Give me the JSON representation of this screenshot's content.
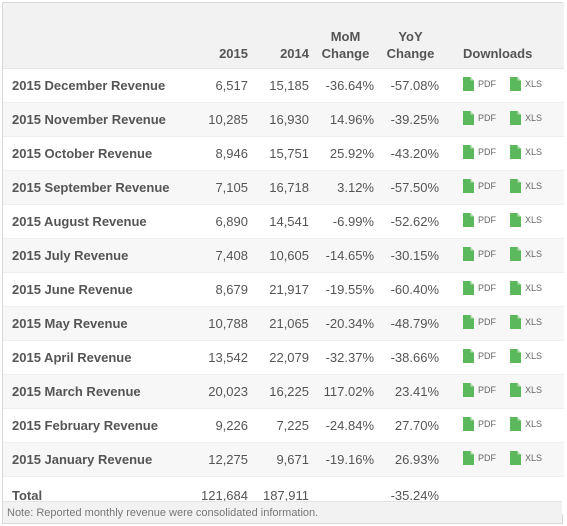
{
  "headers": {
    "col_2015": "2015",
    "col_2014": "2014",
    "mom_line1": "MoM",
    "mom_line2": "Change",
    "yoy_line1": "YoY",
    "yoy_line2": "Change",
    "downloads": "Downloads"
  },
  "download_labels": {
    "pdf": "PDF",
    "xls": "XLS"
  },
  "icon_color": "#5cb85c",
  "icon_name": "file-icon",
  "rows": [
    {
      "label": "2015 December Revenue",
      "v2015": "6,517",
      "v2014": "15,185",
      "mom": "-36.64%",
      "yoy": "-57.08%"
    },
    {
      "label": "2015 November Revenue",
      "v2015": "10,285",
      "v2014": "16,930",
      "mom": "14.96%",
      "yoy": "-39.25%"
    },
    {
      "label": "2015 October Revenue",
      "v2015": "8,946",
      "v2014": "15,751",
      "mom": "25.92%",
      "yoy": "-43.20%"
    },
    {
      "label": "2015 September Revenue",
      "v2015": "7,105",
      "v2014": "16,718",
      "mom": "3.12%",
      "yoy": "-57.50%"
    },
    {
      "label": "2015 August Revenue",
      "v2015": "6,890",
      "v2014": "14,541",
      "mom": "-6.99%",
      "yoy": "-52.62%"
    },
    {
      "label": "2015 July Revenue",
      "v2015": "7,408",
      "v2014": "10,605",
      "mom": "-14.65%",
      "yoy": "-30.15%"
    },
    {
      "label": "2015 June Revenue",
      "v2015": "8,679",
      "v2014": "21,917",
      "mom": "-19.55%",
      "yoy": "-60.40%"
    },
    {
      "label": "2015 May Revenue",
      "v2015": "10,788",
      "v2014": "21,065",
      "mom": "-20.34%",
      "yoy": "-48.79%"
    },
    {
      "label": "2015 April Revenue",
      "v2015": "13,542",
      "v2014": "22,079",
      "mom": "-32.37%",
      "yoy": "-38.66%"
    },
    {
      "label": "2015 March Revenue",
      "v2015": "20,023",
      "v2014": "16,225",
      "mom": "117.02%",
      "yoy": "23.41%"
    },
    {
      "label": "2015 February Revenue",
      "v2015": "9,226",
      "v2014": "7,225",
      "mom": "-24.84%",
      "yoy": "27.70%"
    },
    {
      "label": "2015 January Revenue",
      "v2015": "12,275",
      "v2014": "9,671",
      "mom": "-19.16%",
      "yoy": "26.93%"
    }
  ],
  "total": {
    "label": "Total",
    "v2015": "121,684",
    "v2014": "187,911",
    "mom": "",
    "yoy": "-35.24%"
  },
  "note": "Note: Reported monthly revenue were consolidated information."
}
